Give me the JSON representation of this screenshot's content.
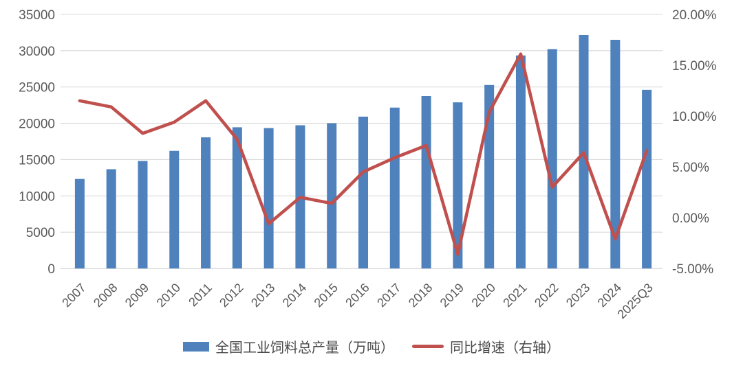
{
  "chart_data": {
    "type": "bar",
    "subtype": "combo-bar-line-dual-axis",
    "categories": [
      "2007",
      "2008",
      "2009",
      "2010",
      "2011",
      "2012",
      "2013",
      "2014",
      "2015",
      "2016",
      "2017",
      "2018",
      "2019",
      "2020",
      "2021",
      "2022",
      "2023",
      "2024",
      "2025Q3"
    ],
    "series": [
      {
        "name": "全国工业饲料总产量（万吨）",
        "type": "bar",
        "axis": "left",
        "color": "#4F81BD",
        "values": [
          12331,
          13672,
          14813,
          16202,
          18063,
          19450,
          19340,
          19727,
          20009,
          20918,
          22161,
          23743,
          22885,
          25276,
          29344,
          30223,
          32163,
          31503,
          24608
        ]
      },
      {
        "name": "同比增速（右轴）",
        "type": "line",
        "axis": "right",
        "color": "#C0504D",
        "unit": "%",
        "values": [
          11.5,
          10.9,
          8.3,
          9.4,
          11.5,
          7.7,
          -0.6,
          2.0,
          1.4,
          4.5,
          5.9,
          7.1,
          -3.6,
          10.4,
          16.1,
          3.0,
          6.4,
          -2.1,
          6.6
        ]
      }
    ],
    "left_axis": {
      "min": 0,
      "max": 35000,
      "step": 5000,
      "tick_labels": [
        "0",
        "5000",
        "10000",
        "15000",
        "20000",
        "25000",
        "30000",
        "35000"
      ]
    },
    "right_axis": {
      "min": -5,
      "max": 20,
      "step": 5,
      "tick_labels": [
        "-5.00%",
        "0.00%",
        "5.00%",
        "10.00%",
        "15.00%",
        "20.00%"
      ]
    },
    "grid": "horizontal",
    "legend_position": "bottom",
    "colors": {
      "grid": "#D9D9D9",
      "axis_line": "#D9D9D9",
      "tick_text": "#595959",
      "background": "#FFFFFF"
    }
  }
}
